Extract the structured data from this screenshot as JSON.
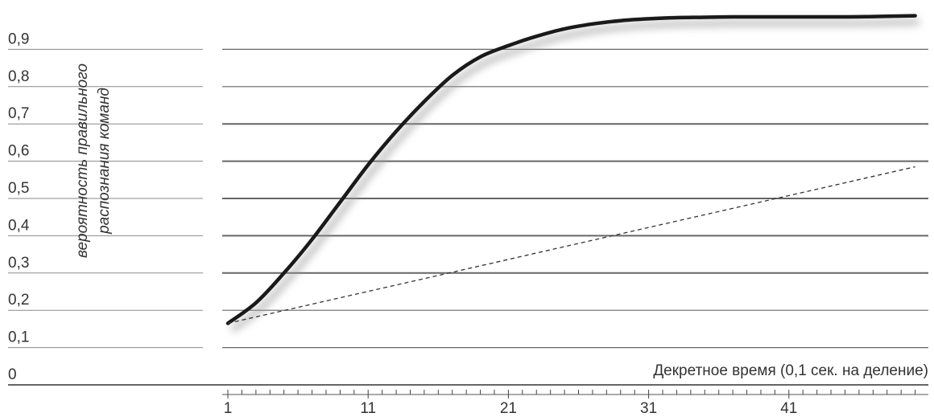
{
  "chart_data": {
    "type": "line",
    "xlabel": "Декретное время (0,1 сек. на деление)",
    "ylabel_lines": [
      "вероятность правильного",
      "распознания команд"
    ],
    "y_ticks": [
      "0",
      "0,1",
      "0,2",
      "0,3",
      "0,4",
      "0,5",
      "0,6",
      "0,7",
      "0,8",
      "0,9"
    ],
    "x_ticks": [
      "1",
      "11",
      "21",
      "31",
      "41"
    ],
    "x_tick_values": [
      1,
      11,
      21,
      31,
      41
    ],
    "xlim": [
      0,
      52.5
    ],
    "ylim": [
      0,
      1
    ],
    "grid": true,
    "series": [
      {
        "style": "solid",
        "color": "#1a1a1a",
        "x": [
          1,
          3,
          5,
          7,
          9,
          11,
          13,
          15,
          17,
          19,
          21,
          23,
          25,
          27,
          29,
          31,
          33,
          35,
          37,
          39,
          41,
          43,
          45,
          47,
          50
        ],
        "y": [
          0.165,
          0.22,
          0.3,
          0.39,
          0.49,
          0.59,
          0.68,
          0.76,
          0.83,
          0.88,
          0.91,
          0.935,
          0.955,
          0.968,
          0.977,
          0.982,
          0.985,
          0.986,
          0.987,
          0.987,
          0.987,
          0.987,
          0.987,
          0.988,
          0.99
        ]
      },
      {
        "style": "dashed",
        "color": "#333333",
        "x": [
          1,
          50
        ],
        "y": [
          0.165,
          0.585
        ]
      }
    ]
  }
}
